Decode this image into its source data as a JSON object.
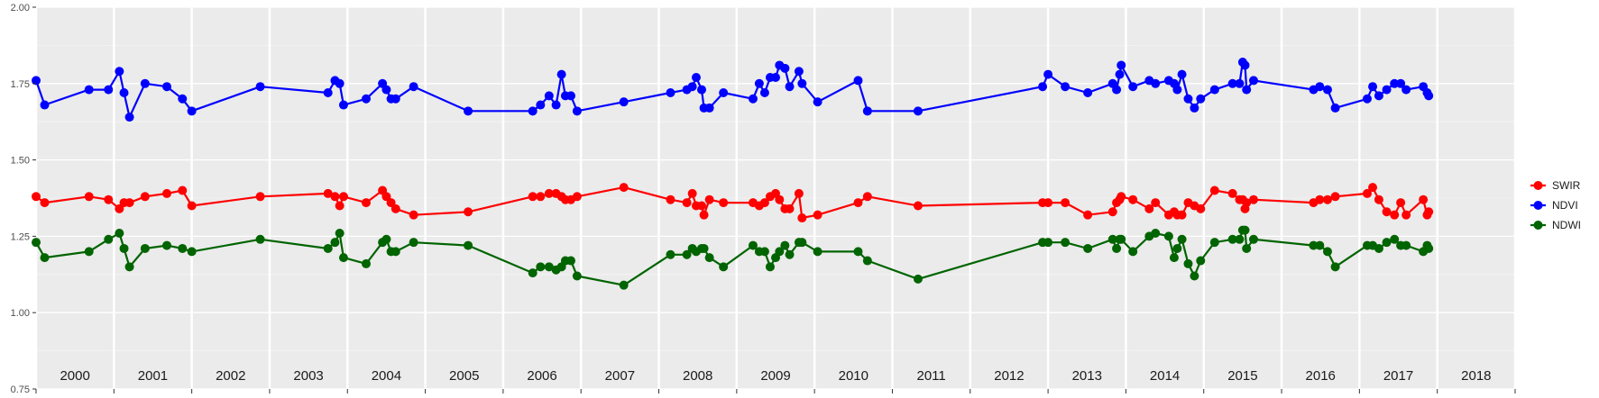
{
  "chart_data": {
    "type": "line",
    "title": "",
    "xlabel": "",
    "ylabel": "",
    "xlim": [
      2000.0,
      2019.0
    ],
    "ylim": [
      0.75,
      2.0
    ],
    "yticks": [
      "0.75",
      "1.00",
      "1.25",
      "1.50",
      "1.75",
      "2.00"
    ],
    "year_labels": [
      "2000",
      "2001",
      "2002",
      "2003",
      "2004",
      "2005",
      "2006",
      "2007",
      "2008",
      "2009",
      "2010",
      "2011",
      "2012",
      "2013",
      "2014",
      "2015",
      "2016",
      "2017",
      "2018"
    ],
    "grid": true,
    "legend_position": "right",
    "series": [
      {
        "name": "SWIR",
        "color": "#ff0000",
        "x": [
          2000.0,
          2000.11,
          2000.68,
          2000.93,
          2001.07,
          2001.13,
          2001.2,
          2001.4,
          2001.68,
          2001.88,
          2002.0,
          2002.88,
          2003.75,
          2003.84,
          2003.9,
          2003.95,
          2004.24,
          2004.45,
          2004.5,
          2004.56,
          2004.62,
          2004.85,
          2005.55,
          2006.38,
          2006.48,
          2006.59,
          2006.68,
          2006.75,
          2006.8,
          2006.87,
          2006.95,
          2007.55,
          2008.15,
          2008.36,
          2008.43,
          2008.48,
          2008.55,
          2008.58,
          2008.65,
          2008.83,
          2009.21,
          2009.29,
          2009.36,
          2009.43,
          2009.5,
          2009.55,
          2009.62,
          2009.68,
          2009.8,
          2009.84,
          2010.04,
          2010.56,
          2010.68,
          2011.33,
          2012.93,
          2013.0,
          2013.22,
          2013.51,
          2013.83,
          2013.88,
          2013.92,
          2013.94,
          2014.09,
          2014.3,
          2014.38,
          2014.55,
          2014.62,
          2014.66,
          2014.72,
          2014.8,
          2014.88,
          2014.96,
          2015.14,
          2015.37,
          2015.46,
          2015.5,
          2015.53,
          2015.55,
          2015.64,
          2016.41,
          2016.49,
          2016.59,
          2016.69,
          2017.1,
          2017.17,
          2017.25,
          2017.35,
          2017.45,
          2017.53,
          2017.6,
          2017.82,
          2017.87,
          2017.89
        ],
        "values": [
          1.38,
          1.36,
          1.38,
          1.37,
          1.34,
          1.36,
          1.36,
          1.38,
          1.39,
          1.4,
          1.35,
          1.38,
          1.39,
          1.38,
          1.35,
          1.38,
          1.36,
          1.4,
          1.38,
          1.36,
          1.34,
          1.32,
          1.33,
          1.38,
          1.38,
          1.39,
          1.39,
          1.38,
          1.37,
          1.37,
          1.38,
          1.41,
          1.37,
          1.36,
          1.39,
          1.35,
          1.35,
          1.32,
          1.37,
          1.36,
          1.36,
          1.35,
          1.36,
          1.38,
          1.39,
          1.37,
          1.34,
          1.34,
          1.39,
          1.31,
          1.32,
          1.36,
          1.38,
          1.35,
          1.36,
          1.36,
          1.36,
          1.32,
          1.33,
          1.36,
          1.37,
          1.38,
          1.37,
          1.34,
          1.36,
          1.32,
          1.33,
          1.32,
          1.32,
          1.36,
          1.35,
          1.34,
          1.4,
          1.39,
          1.37,
          1.37,
          1.34,
          1.36,
          1.37,
          1.36,
          1.37,
          1.37,
          1.38,
          1.39,
          1.41,
          1.37,
          1.33,
          1.32,
          1.36,
          1.32,
          1.37,
          1.32,
          1.33
        ]
      },
      {
        "name": "NDVI",
        "color": "#0000ff",
        "x": [
          2000.0,
          2000.11,
          2000.68,
          2000.93,
          2001.07,
          2001.13,
          2001.2,
          2001.4,
          2001.68,
          2001.88,
          2002.0,
          2002.88,
          2003.75,
          2003.84,
          2003.9,
          2003.95,
          2004.24,
          2004.45,
          2004.5,
          2004.56,
          2004.62,
          2004.85,
          2005.55,
          2006.38,
          2006.48,
          2006.59,
          2006.68,
          2006.75,
          2006.8,
          2006.87,
          2006.95,
          2007.55,
          2008.15,
          2008.36,
          2008.43,
          2008.48,
          2008.55,
          2008.58,
          2008.65,
          2008.83,
          2009.21,
          2009.29,
          2009.36,
          2009.43,
          2009.5,
          2009.55,
          2009.62,
          2009.68,
          2009.8,
          2009.84,
          2010.04,
          2010.56,
          2010.68,
          2011.33,
          2012.93,
          2013.0,
          2013.22,
          2013.51,
          2013.83,
          2013.88,
          2013.92,
          2013.94,
          2014.09,
          2014.3,
          2014.38,
          2014.55,
          2014.62,
          2014.66,
          2014.72,
          2014.8,
          2014.88,
          2014.96,
          2015.14,
          2015.37,
          2015.46,
          2015.5,
          2015.53,
          2015.55,
          2015.64,
          2016.41,
          2016.49,
          2016.59,
          2016.69,
          2017.1,
          2017.17,
          2017.25,
          2017.35,
          2017.45,
          2017.53,
          2017.6,
          2017.82,
          2017.87,
          2017.89
        ],
        "values": [
          1.76,
          1.68,
          1.73,
          1.73,
          1.79,
          1.72,
          1.64,
          1.75,
          1.74,
          1.7,
          1.66,
          1.74,
          1.72,
          1.76,
          1.75,
          1.68,
          1.7,
          1.75,
          1.73,
          1.7,
          1.7,
          1.74,
          1.66,
          1.66,
          1.68,
          1.71,
          1.68,
          1.78,
          1.71,
          1.71,
          1.66,
          1.69,
          1.72,
          1.73,
          1.74,
          1.77,
          1.73,
          1.67,
          1.67,
          1.72,
          1.7,
          1.75,
          1.72,
          1.77,
          1.77,
          1.81,
          1.8,
          1.74,
          1.79,
          1.75,
          1.69,
          1.76,
          1.66,
          1.66,
          1.74,
          1.78,
          1.74,
          1.72,
          1.75,
          1.73,
          1.78,
          1.81,
          1.74,
          1.76,
          1.75,
          1.76,
          1.75,
          1.73,
          1.78,
          1.7,
          1.67,
          1.7,
          1.73,
          1.75,
          1.75,
          1.82,
          1.81,
          1.73,
          1.76,
          1.73,
          1.74,
          1.73,
          1.67,
          1.7,
          1.74,
          1.71,
          1.73,
          1.75,
          1.75,
          1.73,
          1.74,
          1.72,
          1.71
        ]
      },
      {
        "name": "NDWI",
        "color": "#006400",
        "x": [
          2000.0,
          2000.11,
          2000.68,
          2000.93,
          2001.07,
          2001.13,
          2001.2,
          2001.4,
          2001.68,
          2001.88,
          2002.0,
          2002.88,
          2003.75,
          2003.84,
          2003.9,
          2003.95,
          2004.24,
          2004.45,
          2004.5,
          2004.56,
          2004.62,
          2004.85,
          2005.55,
          2006.38,
          2006.48,
          2006.59,
          2006.68,
          2006.75,
          2006.8,
          2006.87,
          2006.95,
          2007.55,
          2008.15,
          2008.36,
          2008.43,
          2008.48,
          2008.55,
          2008.58,
          2008.65,
          2008.83,
          2009.21,
          2009.29,
          2009.36,
          2009.43,
          2009.5,
          2009.55,
          2009.62,
          2009.68,
          2009.8,
          2009.84,
          2010.04,
          2010.56,
          2010.68,
          2011.33,
          2012.93,
          2013.0,
          2013.22,
          2013.51,
          2013.83,
          2013.88,
          2013.92,
          2013.94,
          2014.09,
          2014.3,
          2014.38,
          2014.55,
          2014.62,
          2014.66,
          2014.72,
          2014.8,
          2014.88,
          2014.96,
          2015.14,
          2015.37,
          2015.46,
          2015.5,
          2015.53,
          2015.55,
          2015.64,
          2016.41,
          2016.49,
          2016.59,
          2016.69,
          2017.1,
          2017.17,
          2017.25,
          2017.35,
          2017.45,
          2017.53,
          2017.6,
          2017.82,
          2017.87,
          2017.89
        ],
        "values": [
          1.23,
          1.18,
          1.2,
          1.24,
          1.26,
          1.21,
          1.15,
          1.21,
          1.22,
          1.21,
          1.2,
          1.24,
          1.21,
          1.23,
          1.26,
          1.18,
          1.16,
          1.23,
          1.24,
          1.2,
          1.2,
          1.23,
          1.22,
          1.13,
          1.15,
          1.15,
          1.14,
          1.15,
          1.17,
          1.17,
          1.12,
          1.09,
          1.19,
          1.19,
          1.21,
          1.2,
          1.21,
          1.21,
          1.18,
          1.15,
          1.22,
          1.2,
          1.2,
          1.15,
          1.18,
          1.2,
          1.22,
          1.19,
          1.23,
          1.23,
          1.2,
          1.2,
          1.17,
          1.11,
          1.23,
          1.23,
          1.23,
          1.21,
          1.24,
          1.21,
          1.24,
          1.24,
          1.2,
          1.25,
          1.26,
          1.25,
          1.18,
          1.21,
          1.24,
          1.16,
          1.12,
          1.17,
          1.23,
          1.24,
          1.24,
          1.27,
          1.27,
          1.21,
          1.24,
          1.22,
          1.22,
          1.2,
          1.15,
          1.22,
          1.22,
          1.21,
          1.23,
          1.24,
          1.22,
          1.22,
          1.2,
          1.22,
          1.21
        ]
      }
    ]
  }
}
